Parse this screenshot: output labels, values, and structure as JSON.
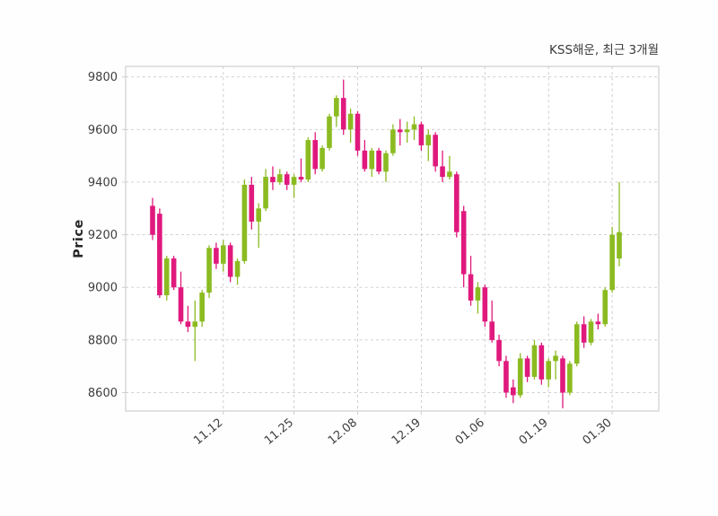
{
  "chart_data": {
    "type": "candlestick",
    "title": "KSS해운, 최근 3개월",
    "ylabel": "Price",
    "ylim": [
      8530,
      9840
    ],
    "grid": "dashed",
    "y_ticks": [
      8600,
      8800,
      9000,
      9200,
      9400,
      9600,
      9800
    ],
    "x_ticks": [
      {
        "label": "11.12",
        "index": 10
      },
      {
        "label": "11.25",
        "index": 20
      },
      {
        "label": "12.08",
        "index": 29
      },
      {
        "label": "12.19",
        "index": 38
      },
      {
        "label": "01.06",
        "index": 47
      },
      {
        "label": "01.19",
        "index": 56
      },
      {
        "label": "01.30",
        "index": 65
      }
    ],
    "colors": {
      "up": "#8bbb21",
      "down": "#e0197d",
      "grid": "#c9c9c9",
      "text": "#3d3d3d",
      "spine": "#cfcfcf"
    },
    "ohlc_order": [
      "open",
      "high",
      "low",
      "close"
    ],
    "candles": [
      [
        9310,
        9340,
        9180,
        9200
      ],
      [
        9280,
        9300,
        8960,
        8970
      ],
      [
        8970,
        9120,
        8950,
        9110
      ],
      [
        9110,
        9120,
        8990,
        9000
      ],
      [
        9000,
        9060,
        8860,
        8870
      ],
      [
        8870,
        8930,
        8830,
        8850
      ],
      [
        8850,
        8950,
        8720,
        8870
      ],
      [
        8870,
        8990,
        8850,
        8980
      ],
      [
        8980,
        9160,
        8960,
        9150
      ],
      [
        9150,
        9170,
        9070,
        9090
      ],
      [
        9090,
        9180,
        9060,
        9160
      ],
      [
        9160,
        9170,
        9020,
        9040
      ],
      [
        9040,
        9110,
        9010,
        9100
      ],
      [
        9100,
        9410,
        9090,
        9390
      ],
      [
        9390,
        9420,
        9220,
        9250
      ],
      [
        9250,
        9320,
        9150,
        9300
      ],
      [
        9300,
        9450,
        9290,
        9420
      ],
      [
        9420,
        9460,
        9370,
        9400
      ],
      [
        9400,
        9450,
        9390,
        9430
      ],
      [
        9430,
        9440,
        9370,
        9390
      ],
      [
        9390,
        9430,
        9340,
        9420
      ],
      [
        9420,
        9490,
        9400,
        9410
      ],
      [
        9410,
        9570,
        9400,
        9560
      ],
      [
        9560,
        9590,
        9430,
        9450
      ],
      [
        9450,
        9540,
        9440,
        9530
      ],
      [
        9530,
        9660,
        9520,
        9650
      ],
      [
        9650,
        9730,
        9610,
        9720
      ],
      [
        9720,
        9790,
        9580,
        9600
      ],
      [
        9600,
        9680,
        9550,
        9660
      ],
      [
        9660,
        9670,
        9500,
        9520
      ],
      [
        9520,
        9560,
        9440,
        9450
      ],
      [
        9450,
        9530,
        9420,
        9520
      ],
      [
        9520,
        9530,
        9430,
        9440
      ],
      [
        9440,
        9520,
        9400,
        9510
      ],
      [
        9510,
        9620,
        9500,
        9600
      ],
      [
        9600,
        9640,
        9540,
        9590
      ],
      [
        9590,
        9630,
        9550,
        9600
      ],
      [
        9600,
        9650,
        9560,
        9620
      ],
      [
        9620,
        9630,
        9520,
        9540
      ],
      [
        9540,
        9600,
        9480,
        9580
      ],
      [
        9580,
        9590,
        9440,
        9460
      ],
      [
        9460,
        9520,
        9400,
        9420
      ],
      [
        9420,
        9500,
        9410,
        9440
      ],
      [
        9430,
        9440,
        9190,
        9210
      ],
      [
        9290,
        9310,
        9000,
        9050
      ],
      [
        9050,
        9120,
        8930,
        8950
      ],
      [
        8950,
        9020,
        8900,
        9000
      ],
      [
        9000,
        9010,
        8850,
        8870
      ],
      [
        8870,
        8950,
        8790,
        8800
      ],
      [
        8800,
        8820,
        8700,
        8720
      ],
      [
        8720,
        8740,
        8580,
        8600
      ],
      [
        8620,
        8650,
        8560,
        8590
      ],
      [
        8590,
        8750,
        8580,
        8730
      ],
      [
        8730,
        8740,
        8640,
        8660
      ],
      [
        8660,
        8800,
        8650,
        8780
      ],
      [
        8780,
        8790,
        8630,
        8650
      ],
      [
        8650,
        8730,
        8620,
        8720
      ],
      [
        8720,
        8760,
        8650,
        8740
      ],
      [
        8730,
        8740,
        8540,
        8600
      ],
      [
        8600,
        8720,
        8590,
        8710
      ],
      [
        8710,
        8870,
        8700,
        8860
      ],
      [
        8860,
        8890,
        8770,
        8790
      ],
      [
        8790,
        8880,
        8780,
        8870
      ],
      [
        8870,
        8900,
        8840,
        8860
      ],
      [
        8860,
        9000,
        8850,
        8990
      ],
      [
        8990,
        9230,
        8980,
        9200
      ],
      [
        9110,
        9400,
        9080,
        9210
      ]
    ]
  }
}
